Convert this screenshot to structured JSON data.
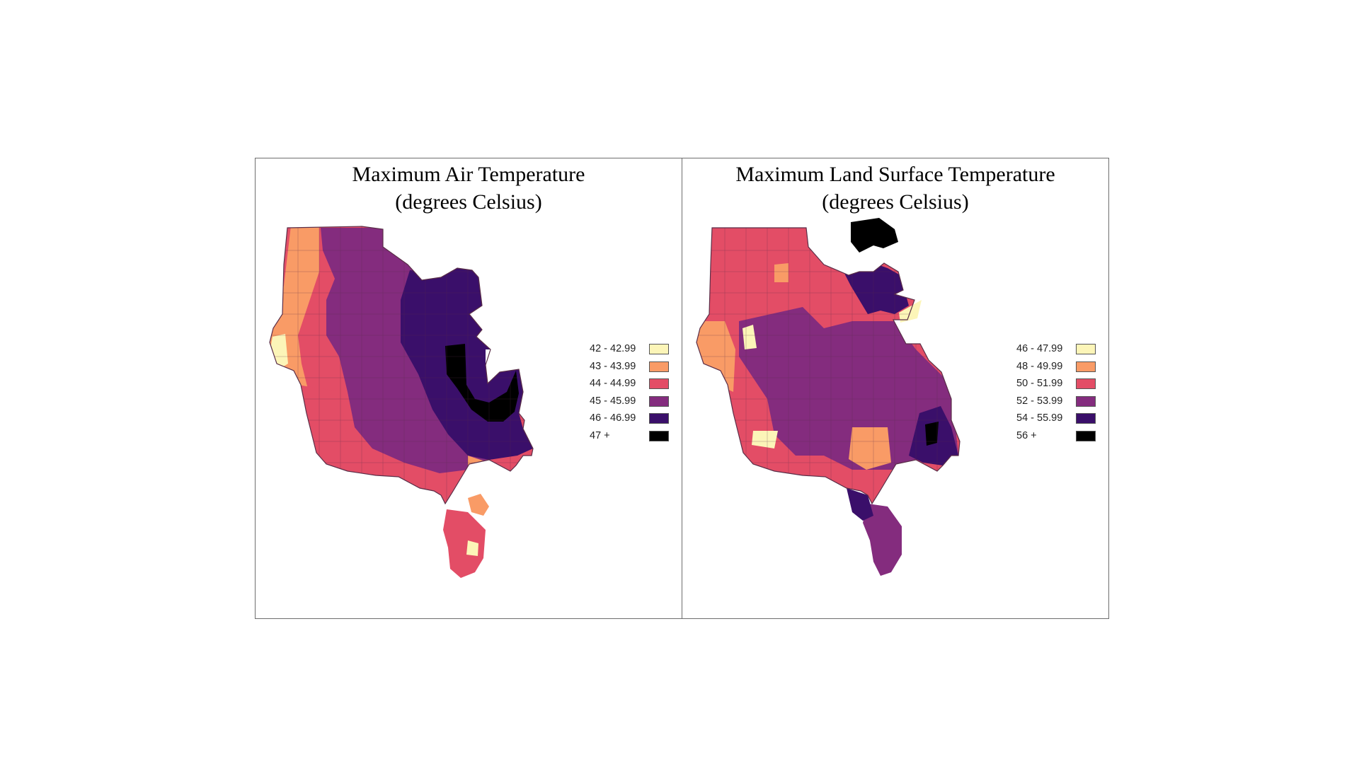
{
  "maps": [
    {
      "title_line1": "Maximum Air Temperature",
      "title_line2": "(degrees Celsius)",
      "legend": [
        {
          "label": "42 - 42.99",
          "color": "#fcf5b8"
        },
        {
          "label": "43 - 43.99",
          "color": "#f99b66"
        },
        {
          "label": "44 - 44.99",
          "color": "#e34d66"
        },
        {
          "label": "45 - 45.99",
          "color": "#842c7e"
        },
        {
          "label": "46 - 46.99",
          "color": "#3a0f6a"
        },
        {
          "label": "47 +",
          "color": "#000000"
        }
      ]
    },
    {
      "title_line1": "Maximum Land Surface Temperature",
      "title_line2": "(degrees Celsius)",
      "legend": [
        {
          "label": "46 - 47.99",
          "color": "#fcf5b8"
        },
        {
          "label": "48 - 49.99",
          "color": "#f99b66"
        },
        {
          "label": "50 - 51.99",
          "color": "#e34d66"
        },
        {
          "label": "52 - 53.99",
          "color": "#842c7e"
        },
        {
          "label": "54 - 55.99",
          "color": "#3a0f6a"
        },
        {
          "label": "56 +",
          "color": "#000000"
        }
      ]
    }
  ]
}
